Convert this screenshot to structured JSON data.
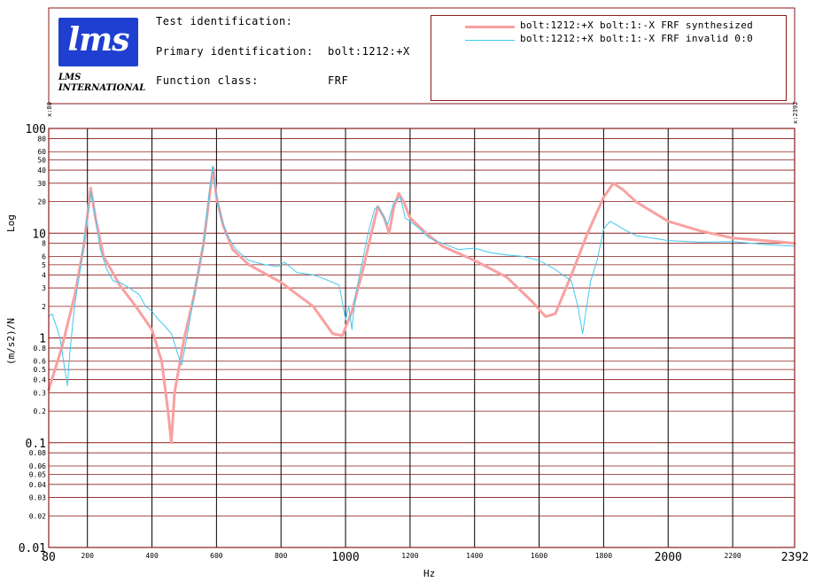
{
  "header": {
    "test_id_label": "Test identification:",
    "test_id_value": "",
    "primary_id_label": "Primary identification:",
    "primary_id_value": "bolt:1212:+X",
    "function_class_label": "Function class:",
    "function_class_value": "FRF",
    "logo_text": "lms",
    "company_line1": "LMS",
    "company_line2": "INTERNATIONAL",
    "cursor_left": "x:80",
    "cursor_right": "x:2392"
  },
  "colors": {
    "frame": "#8b1a1a",
    "grid": "#8b1a1a",
    "major_grid": "#000000",
    "synth": "#f9a0a0",
    "measured": "#40c8f0",
    "logo": "#1f3fd0"
  },
  "chart_data": {
    "type": "line",
    "xlabel": "Hz",
    "ylabel_top": "Log",
    "ylabel_bottom": "(m/s2)/N",
    "xlim": [
      80,
      2392
    ],
    "ylim": [
      0.01,
      100
    ],
    "yscale": "log",
    "x_ticks": [
      {
        "value": 80,
        "label": "80",
        "size": "large"
      },
      {
        "value": 200,
        "label": "200",
        "size": "small"
      },
      {
        "value": 400,
        "label": "400",
        "size": "small"
      },
      {
        "value": 600,
        "label": "600",
        "size": "small"
      },
      {
        "value": 800,
        "label": "800",
        "size": "small"
      },
      {
        "value": 1000,
        "label": "1000",
        "size": "large"
      },
      {
        "value": 1200,
        "label": "1200",
        "size": "small"
      },
      {
        "value": 1400,
        "label": "1400",
        "size": "small"
      },
      {
        "value": 1600,
        "label": "1600",
        "size": "small"
      },
      {
        "value": 1800,
        "label": "1800",
        "size": "small"
      },
      {
        "value": 2000,
        "label": "2000",
        "size": "large"
      },
      {
        "value": 2200,
        "label": "2200",
        "size": "small"
      },
      {
        "value": 2392,
        "label": "2392",
        "size": "large"
      }
    ],
    "y_ticks": [
      {
        "value": 100,
        "label": "100",
        "size": "large"
      },
      {
        "value": 80,
        "label": "80",
        "size": "small"
      },
      {
        "value": 60,
        "label": "60",
        "size": "small"
      },
      {
        "value": 50,
        "label": "50",
        "size": "small"
      },
      {
        "value": 40,
        "label": "40",
        "size": "small"
      },
      {
        "value": 30,
        "label": "30",
        "size": "small"
      },
      {
        "value": 20,
        "label": "20",
        "size": "small"
      },
      {
        "value": 10,
        "label": "10",
        "size": "large"
      },
      {
        "value": 8,
        "label": "8",
        "size": "small"
      },
      {
        "value": 6,
        "label": "6",
        "size": "small"
      },
      {
        "value": 5,
        "label": "5",
        "size": "small"
      },
      {
        "value": 4,
        "label": "4",
        "size": "small"
      },
      {
        "value": 3,
        "label": "3",
        "size": "small"
      },
      {
        "value": 2,
        "label": "2",
        "size": "small"
      },
      {
        "value": 1,
        "label": "1",
        "size": "large"
      },
      {
        "value": 0.8,
        "label": "0.8",
        "size": "small"
      },
      {
        "value": 0.6,
        "label": "0.6",
        "size": "small"
      },
      {
        "value": 0.5,
        "label": "0.5",
        "size": "small"
      },
      {
        "value": 0.4,
        "label": "0.4",
        "size": "small"
      },
      {
        "value": 0.3,
        "label": "0.3",
        "size": "small"
      },
      {
        "value": 0.2,
        "label": "0.2",
        "size": "small"
      },
      {
        "value": 0.1,
        "label": "0.1",
        "size": "large"
      },
      {
        "value": 0.08,
        "label": "0.08",
        "size": "small"
      },
      {
        "value": 0.06,
        "label": "0.06",
        "size": "small"
      },
      {
        "value": 0.05,
        "label": "0.05",
        "size": "small"
      },
      {
        "value": 0.04,
        "label": "0.04",
        "size": "small"
      },
      {
        "value": 0.03,
        "label": "0.03",
        "size": "small"
      },
      {
        "value": 0.02,
        "label": "0.02",
        "size": "small"
      },
      {
        "value": 0.01,
        "label": "0.01",
        "size": "large"
      }
    ],
    "major_x": [
      200,
      400,
      600,
      800,
      1000,
      1200,
      1400,
      1600,
      1800,
      2000,
      2200
    ],
    "series": [
      {
        "name": "bolt:1212:+X bolt:1:-X FRF synthesized",
        "color": "#f9a0a0",
        "points": [
          [
            80,
            0.32
          ],
          [
            120,
            0.8
          ],
          [
            160,
            2.5
          ],
          [
            190,
            8
          ],
          [
            210,
            27
          ],
          [
            225,
            14
          ],
          [
            250,
            6
          ],
          [
            300,
            3.2
          ],
          [
            350,
            2.0
          ],
          [
            400,
            1.2
          ],
          [
            430,
            0.6
          ],
          [
            450,
            0.2
          ],
          [
            460,
            0.1
          ],
          [
            470,
            0.3
          ],
          [
            500,
            1.0
          ],
          [
            530,
            2.5
          ],
          [
            560,
            8
          ],
          [
            580,
            25
          ],
          [
            590,
            42
          ],
          [
            600,
            22
          ],
          [
            620,
            12
          ],
          [
            650,
            7
          ],
          [
            700,
            5
          ],
          [
            800,
            3.4
          ],
          [
            900,
            2.0
          ],
          [
            960,
            1.1
          ],
          [
            990,
            1.05
          ],
          [
            1020,
            1.8
          ],
          [
            1050,
            4
          ],
          [
            1080,
            10
          ],
          [
            1100,
            18
          ],
          [
            1120,
            14
          ],
          [
            1135,
            10
          ],
          [
            1150,
            18
          ],
          [
            1165,
            24
          ],
          [
            1180,
            20
          ],
          [
            1200,
            14
          ],
          [
            1250,
            10
          ],
          [
            1300,
            7.5
          ],
          [
            1400,
            5.5
          ],
          [
            1500,
            3.8
          ],
          [
            1580,
            2.2
          ],
          [
            1620,
            1.6
          ],
          [
            1650,
            1.7
          ],
          [
            1700,
            4
          ],
          [
            1750,
            10
          ],
          [
            1800,
            22
          ],
          [
            1830,
            30
          ],
          [
            1860,
            26
          ],
          [
            1900,
            20
          ],
          [
            2000,
            13
          ],
          [
            2100,
            10.5
          ],
          [
            2200,
            9
          ],
          [
            2300,
            8.5
          ],
          [
            2392,
            8
          ]
        ]
      },
      {
        "name": "bolt:1212:+X bolt:1:-X FRF invalid 0:0",
        "color": "#40c8f0",
        "points": [
          [
            80,
            1.6
          ],
          [
            90,
            1.7
          ],
          [
            100,
            1.4
          ],
          [
            115,
            1.0
          ],
          [
            130,
            0.5
          ],
          [
            138,
            0.35
          ],
          [
            145,
            0.7
          ],
          [
            160,
            2.0
          ],
          [
            180,
            5
          ],
          [
            200,
            15
          ],
          [
            212,
            25
          ],
          [
            225,
            14
          ],
          [
            240,
            7
          ],
          [
            260,
            4.5
          ],
          [
            280,
            3.5
          ],
          [
            300,
            3.4
          ],
          [
            330,
            3.0
          ],
          [
            360,
            2.6
          ],
          [
            380,
            2.0
          ],
          [
            400,
            1.8
          ],
          [
            420,
            1.5
          ],
          [
            440,
            1.3
          ],
          [
            460,
            1.1
          ],
          [
            480,
            0.7
          ],
          [
            492,
            0.55
          ],
          [
            505,
            0.9
          ],
          [
            530,
            2.5
          ],
          [
            560,
            8
          ],
          [
            578,
            25
          ],
          [
            588,
            44
          ],
          [
            598,
            25
          ],
          [
            610,
            16
          ],
          [
            630,
            10
          ],
          [
            660,
            7
          ],
          [
            700,
            5.5
          ],
          [
            750,
            5.0
          ],
          [
            790,
            4.8
          ],
          [
            810,
            5.3
          ],
          [
            850,
            4.2
          ],
          [
            900,
            4.0
          ],
          [
            940,
            3.6
          ],
          [
            980,
            3.2
          ],
          [
            1000,
            1.5
          ],
          [
            1010,
            2.0
          ],
          [
            1020,
            1.2
          ],
          [
            1030,
            2.5
          ],
          [
            1050,
            5
          ],
          [
            1070,
            10
          ],
          [
            1090,
            17
          ],
          [
            1100,
            18
          ],
          [
            1115,
            15
          ],
          [
            1130,
            12
          ],
          [
            1150,
            20
          ],
          [
            1170,
            22
          ],
          [
            1185,
            14
          ],
          [
            1200,
            13
          ],
          [
            1230,
            11
          ],
          [
            1260,
            9
          ],
          [
            1300,
            8
          ],
          [
            1350,
            7
          ],
          [
            1400,
            7.2
          ],
          [
            1450,
            6.5
          ],
          [
            1500,
            6.2
          ],
          [
            1550,
            6.0
          ],
          [
            1600,
            5.5
          ],
          [
            1650,
            4.5
          ],
          [
            1700,
            3.5
          ],
          [
            1720,
            2.0
          ],
          [
            1735,
            1.1
          ],
          [
            1745,
            1.8
          ],
          [
            1760,
            3.5
          ],
          [
            1780,
            5.5
          ],
          [
            1800,
            11
          ],
          [
            1820,
            13
          ],
          [
            1840,
            12
          ],
          [
            1860,
            11
          ],
          [
            1900,
            9.5
          ],
          [
            1950,
            9
          ],
          [
            2000,
            8.5
          ],
          [
            2100,
            8.2
          ],
          [
            2200,
            8.3
          ],
          [
            2300,
            7.8
          ],
          [
            2392,
            7.5
          ]
        ]
      }
    ]
  }
}
